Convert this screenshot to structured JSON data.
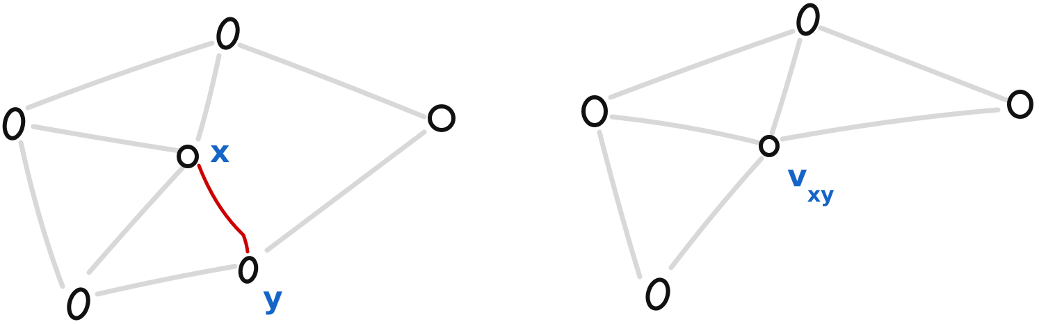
{
  "colors": {
    "edge": "#d8d8d8",
    "highlight_edge": "#cc0000",
    "node_stroke": "#111111",
    "label": "#1565c8"
  },
  "left_graph": {
    "label_x": "x",
    "label_y": "y"
  },
  "right_graph": {
    "label_merged_base": "v",
    "label_merged_sub": "xy"
  }
}
